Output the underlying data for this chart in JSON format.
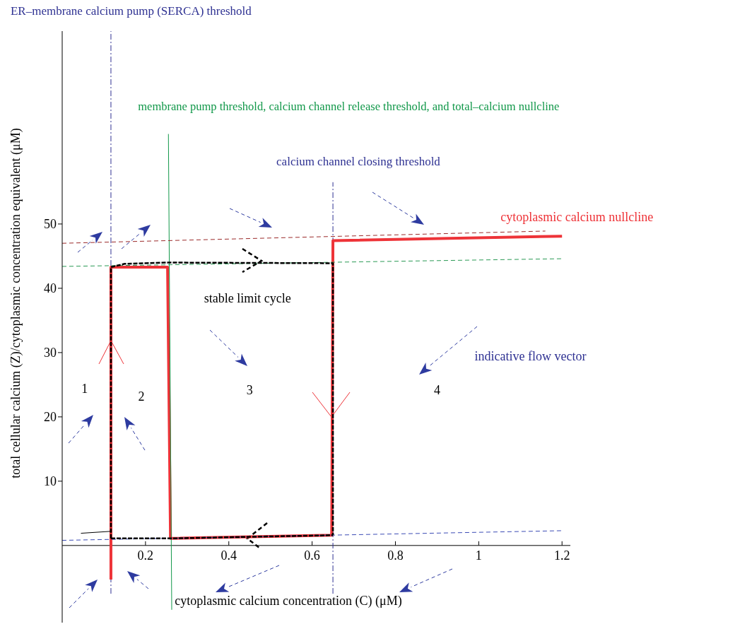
{
  "chart_data": {
    "type": "line",
    "xlabel": "cytoplasmic calcium concentration (C) (μM)",
    "ylabel": "total cellular calcium (Z)/cytoplasmic concentration equivalent (μM)",
    "xlim": [
      0,
      1.22
    ],
    "ylim": [
      -12,
      80
    ],
    "xticks": [
      0.2,
      0.4,
      0.6,
      0.8,
      1,
      1.2
    ],
    "yticks": [
      10,
      20,
      30,
      40,
      50
    ],
    "grid": false,
    "legend": false,
    "marker": "none",
    "series": [
      {
        "name": "cytoplasmic calcium nullcline",
        "color": "#ee3338",
        "x": [
          0.117,
          0.117,
          0.253,
          0.26,
          0.647,
          0.65,
          1.2
        ],
        "values": [
          -5.3,
          43.3,
          43.3,
          1.1,
          1.6,
          47.4,
          48.1
        ]
      },
      {
        "name": "stable limit cycle",
        "color": "#000000",
        "line_style": "dashed",
        "x": [
          0.117,
          0.117,
          0.15,
          0.25,
          0.65,
          0.65
        ],
        "values": [
          1.1,
          43.3,
          43.8,
          44.0,
          43.9,
          1.6
        ]
      },
      {
        "name": "membrane pump threshold, calcium channel release threshold, and total–calcium nullcline",
        "color": "#12984a",
        "x": [
          0.255,
          0.263
        ],
        "values": [
          64,
          -10
        ]
      },
      {
        "color": "#9b2a2a",
        "line_style": "dashed",
        "x": [
          0,
          1.16
        ],
        "values": [
          47.0,
          48.9
        ]
      },
      {
        "color": "#2a9a55",
        "line_style": "dashed",
        "x": [
          0,
          1.2
        ],
        "values": [
          43.4,
          44.6
        ]
      },
      {
        "color": "#3b4bb5",
        "line_style": "dashed",
        "x": [
          0,
          1.2
        ],
        "values": [
          0.8,
          2.3
        ]
      },
      {
        "color": "#000000",
        "x": [
          0.045,
          0.117
        ],
        "values": [
          1.9,
          2.2
        ]
      },
      {
        "color": "#000000",
        "line_style": "dashed",
        "x": [
          0.117,
          0.26,
          0.65
        ],
        "values": [
          1.1,
          1.1,
          1.6
        ]
      }
    ],
    "ref_lines": [
      {
        "axis": "x",
        "value": 0.117,
        "label": "ER–membrane calcium pump (SERCA) threshold",
        "color": "#2e3192",
        "line_style": "dashed"
      },
      {
        "axis": "x",
        "value": 0.65,
        "label": "calcium channel closing threshold",
        "color": "#2e3192",
        "line_style": "dashed"
      }
    ],
    "annotations": [
      "1",
      "2",
      "3",
      "4",
      "indicative flow vector"
    ]
  }
}
